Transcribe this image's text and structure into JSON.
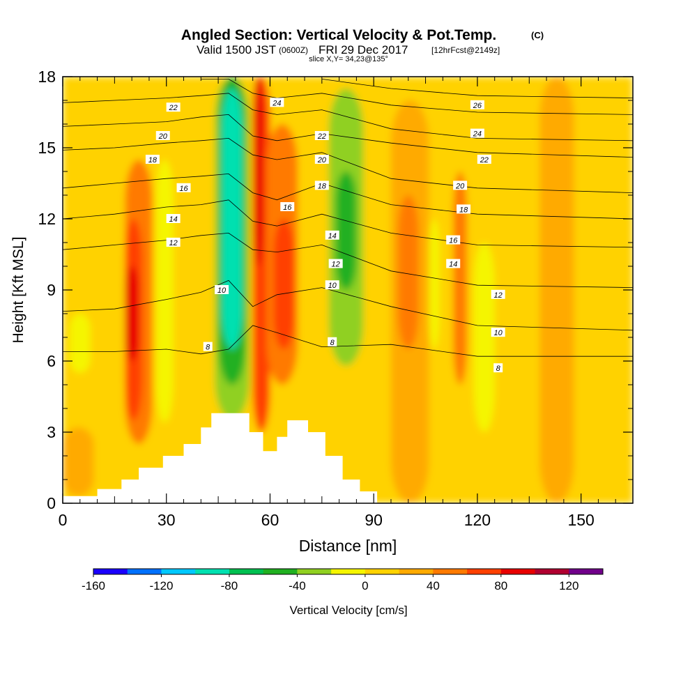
{
  "chart_data": {
    "type": "heatmap",
    "title": "Angled Section: Vertical Velocity & Pot.Temp.",
    "title_mark": "(C)",
    "subtitle": {
      "valid": "Valid 1500 JST",
      "utc": "(0600Z)",
      "date": "FRI 29 Dec 2017",
      "fcst": "[12hrFcst@2149z]",
      "slice": "slice X,Y= 34,23@135°"
    },
    "xlabel": "Distance [nm]",
    "ylabel": "Height [Kft MSL]",
    "xlim": [
      0,
      165
    ],
    "ylim": [
      0,
      18
    ],
    "x_ticks": [
      "0",
      "30",
      "60",
      "90",
      "120",
      "150"
    ],
    "y_ticks": [
      "0",
      "3",
      "6",
      "9",
      "12",
      "15",
      "18"
    ],
    "x_tick_values": [
      0,
      30,
      60,
      90,
      120,
      150
    ],
    "y_tick_values": [
      0,
      3,
      6,
      9,
      12,
      15,
      18
    ],
    "grid": false,
    "colorbar": {
      "label": "Vertical Velocity [cm/s]",
      "range": [
        -160,
        140
      ],
      "step": 20,
      "tick_labels": [
        "-160",
        "-120",
        "-80",
        "-40",
        "0",
        "40",
        "80",
        "120"
      ],
      "tick_values": [
        -160,
        -120,
        -80,
        -40,
        0,
        40,
        80,
        120
      ],
      "colors": [
        "#1a00ff",
        "#0070ff",
        "#00c8ff",
        "#00e0b0",
        "#00c050",
        "#20b020",
        "#90d020",
        "#f5f500",
        "#ffd200",
        "#ffaa00",
        "#ff7a00",
        "#ff4000",
        "#e80000",
        "#b00030",
        "#70008a"
      ]
    },
    "velocity_cells": [
      {
        "x": [
          0,
          165
        ],
        "y": [
          0,
          18
        ],
        "value": 0
      },
      {
        "x": [
          0,
          9
        ],
        "y": [
          0.3,
          3.2
        ],
        "value": 20
      },
      {
        "x": [
          18,
          26
        ],
        "y": [
          2.5,
          14.5
        ],
        "value": 40
      },
      {
        "x": [
          18,
          23
        ],
        "y": [
          3.5,
          12
        ],
        "value": 60
      },
      {
        "x": [
          18,
          22
        ],
        "y": [
          6,
          10
        ],
        "value": 80
      },
      {
        "x": [
          2,
          8
        ],
        "y": [
          5.5,
          8
        ],
        "value": -20
      },
      {
        "x": [
          27,
          32
        ],
        "y": [
          3.4,
          14.5
        ],
        "value": -20
      },
      {
        "x": [
          44,
          54
        ],
        "y": [
          3.5,
          18
        ],
        "value": -40
      },
      {
        "x": [
          45,
          53
        ],
        "y": [
          5,
          18
        ],
        "value": -60
      },
      {
        "x": [
          46,
          52
        ],
        "y": [
          6.5,
          17.5
        ],
        "value": -100
      },
      {
        "x": [
          55,
          60
        ],
        "y": [
          3,
          18
        ],
        "value": 60
      },
      {
        "x": [
          55,
          58
        ],
        "y": [
          10,
          18
        ],
        "value": 80
      },
      {
        "x": [
          59,
          68
        ],
        "y": [
          5,
          16
        ],
        "value": 40
      },
      {
        "x": [
          61,
          67
        ],
        "y": [
          6.5,
          12
        ],
        "value": 60
      },
      {
        "x": [
          77,
          87
        ],
        "y": [
          5.8,
          17.5
        ],
        "value": -40
      },
      {
        "x": [
          79,
          85
        ],
        "y": [
          9,
          14
        ],
        "value": -60
      },
      {
        "x": [
          95,
          106
        ],
        "y": [
          0,
          17
        ],
        "value": 20
      },
      {
        "x": [
          97,
          103
        ],
        "y": [
          6.5,
          13
        ],
        "value": 40
      },
      {
        "x": [
          106,
          109
        ],
        "y": [
          6.5,
          12
        ],
        "value": -20
      },
      {
        "x": [
          113,
          117
        ],
        "y": [
          5,
          14
        ],
        "value": 40
      },
      {
        "x": [
          119,
          125
        ],
        "y": [
          3,
          11
        ],
        "value": -20
      },
      {
        "x": [
          138,
          148
        ],
        "y": [
          0,
          18
        ],
        "value": 20
      }
    ],
    "terrain_height_kft": [
      {
        "x": 0,
        "y": 0.3
      },
      {
        "x": 10,
        "y": 0.6
      },
      {
        "x": 17,
        "y": 1
      },
      {
        "x": 22,
        "y": 1.5
      },
      {
        "x": 29,
        "y": 2
      },
      {
        "x": 35,
        "y": 2.5
      },
      {
        "x": 40,
        "y": 3.2
      },
      {
        "x": 43,
        "y": 3.8
      },
      {
        "x": 51,
        "y": 3.8
      },
      {
        "x": 54,
        "y": 3
      },
      {
        "x": 58,
        "y": 2.2
      },
      {
        "x": 62,
        "y": 2.8
      },
      {
        "x": 65,
        "y": 3.5
      },
      {
        "x": 71,
        "y": 3
      },
      {
        "x": 76,
        "y": 2
      },
      {
        "x": 81,
        "y": 1
      },
      {
        "x": 86,
        "y": 0.5
      },
      {
        "x": 91,
        "y": 0
      }
    ],
    "theta_contours": [
      {
        "label": "8",
        "y": [
          6.4,
          6.4,
          6.5,
          6.3,
          6.5,
          7.5,
          7.2,
          6.6,
          6.7,
          6.2,
          6.2
        ]
      },
      {
        "label": "10",
        "y": [
          8.1,
          8.2,
          8.6,
          8.9,
          9.4,
          8.3,
          8.8,
          9.1,
          8.3,
          7.5,
          7.3
        ]
      },
      {
        "label": "12",
        "y": [
          10.7,
          10.9,
          11.1,
          11.3,
          11.4,
          10.7,
          10.6,
          10.9,
          9.8,
          9.2,
          9.1
        ]
      },
      {
        "label": "14",
        "y": [
          12,
          12.2,
          12.5,
          12.6,
          12.8,
          11.9,
          11.7,
          12.2,
          11.4,
          10.9,
          10.8
        ]
      },
      {
        "label": "16",
        "y": [
          13.3,
          13.5,
          13.7,
          13.8,
          13.9,
          13.1,
          12.8,
          13.5,
          12.6,
          12.2,
          12
        ]
      },
      {
        "label": "18",
        "y": [
          14.9,
          15,
          15.2,
          15.3,
          15.4,
          14.7,
          14.5,
          14.8,
          13.7,
          13.3,
          13.1
        ]
      },
      {
        "label": "20",
        "y": [
          15.9,
          16,
          16.1,
          16.3,
          16.4,
          15.5,
          15.3,
          15.6,
          15.2,
          14.8,
          14.6
        ]
      },
      {
        "label": "22",
        "y": [
          16.9,
          17,
          17.1,
          17.2,
          17.3,
          16.6,
          16.4,
          16.6,
          15.8,
          15.4,
          15.3
        ]
      },
      {
        "label": "24",
        "y": [
          null,
          null,
          null,
          17.9,
          17.9,
          17.3,
          17.1,
          17.3,
          16.8,
          16.5,
          16.4
        ]
      },
      {
        "label": "26",
        "y": [
          null,
          null,
          null,
          null,
          null,
          null,
          null,
          17.9,
          17.5,
          17.2,
          17.1
        ]
      }
    ],
    "theta_contour_x": [
      0,
      15,
      30,
      40,
      48,
      55,
      62,
      75,
      95,
      120,
      165
    ],
    "theta_labels": [
      {
        "label": "22",
        "x": 32,
        "y": 16.7
      },
      {
        "label": "20",
        "x": 29,
        "y": 15.5
      },
      {
        "label": "18",
        "x": 26,
        "y": 14.5
      },
      {
        "label": "16",
        "x": 35,
        "y": 13.3
      },
      {
        "label": "14",
        "x": 32,
        "y": 12
      },
      {
        "label": "12",
        "x": 32,
        "y": 11
      },
      {
        "label": "10",
        "x": 46,
        "y": 9
      },
      {
        "label": "8",
        "x": 42,
        "y": 6.6
      },
      {
        "label": "24",
        "x": 62,
        "y": 16.9
      },
      {
        "label": "16",
        "x": 65,
        "y": 12.5
      },
      {
        "label": "22",
        "x": 75,
        "y": 15.5
      },
      {
        "label": "20",
        "x": 75,
        "y": 14.5
      },
      {
        "label": "18",
        "x": 75,
        "y": 13.4
      },
      {
        "label": "14",
        "x": 78,
        "y": 11.3
      },
      {
        "label": "12",
        "x": 79,
        "y": 10.1
      },
      {
        "label": "10",
        "x": 78,
        "y": 9.2
      },
      {
        "label": "8",
        "x": 78,
        "y": 6.8
      },
      {
        "label": "26",
        "x": 120,
        "y": 16.8
      },
      {
        "label": "24",
        "x": 120,
        "y": 15.6
      },
      {
        "label": "22",
        "x": 122,
        "y": 14.5
      },
      {
        "label": "20",
        "x": 115,
        "y": 13.4
      },
      {
        "label": "18",
        "x": 116,
        "y": 12.4
      },
      {
        "label": "16",
        "x": 113,
        "y": 11.1
      },
      {
        "label": "14",
        "x": 113,
        "y": 10.1
      },
      {
        "label": "12",
        "x": 126,
        "y": 8.8
      },
      {
        "label": "10",
        "x": 126,
        "y": 7.2
      },
      {
        "label": "8",
        "x": 126,
        "y": 5.7
      }
    ]
  }
}
